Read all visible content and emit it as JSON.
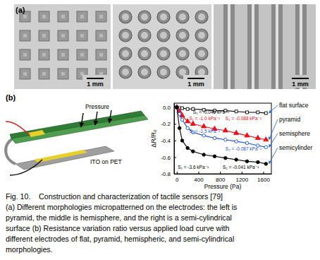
{
  "panel_a": {
    "label": "(a)",
    "scale_bars": [
      "1 mm",
      "1 mm",
      "1 mm"
    ]
  },
  "panel_b": {
    "label": "(b)",
    "device_labels": [
      "Pressure",
      "ITO on PET"
    ]
  },
  "chart_data": {
    "type": "line",
    "x_label": "Pressure (Pa)",
    "y_label": "ΔR/R₀",
    "x": [
      0,
      50,
      100,
      200,
      300,
      500,
      700,
      900,
      1100,
      1300,
      1500,
      1650
    ],
    "series": [
      {
        "name": "flat surface",
        "color": "#000000",
        "marker": "square-open",
        "values": [
          0,
          -0.01,
          -0.01,
          -0.02,
          -0.02,
          -0.03,
          -0.04,
          -0.04,
          -0.05,
          -0.06,
          -0.06,
          -0.07
        ]
      },
      {
        "name": "pyramid",
        "color": "#e8141b",
        "marker": "triangle",
        "values": [
          0,
          -0.05,
          -0.1,
          -0.17,
          -0.2,
          -0.23,
          -0.26,
          -0.28,
          -0.31,
          -0.34,
          -0.37,
          -0.39
        ]
      },
      {
        "name": "semisphere",
        "color": "#1f4fd1",
        "marker": "circle-open",
        "values": [
          0,
          -0.08,
          -0.15,
          -0.25,
          -0.3,
          -0.34,
          -0.37,
          -0.39,
          -0.41,
          -0.43,
          -0.46,
          -0.48
        ]
      },
      {
        "name": "semicylinder",
        "color": "#000000",
        "marker": "circle",
        "values": [
          0,
          -0.25,
          -0.4,
          -0.49,
          -0.53,
          -0.57,
          -0.59,
          -0.61,
          -0.63,
          -0.65,
          -0.66,
          -0.68
        ]
      }
    ],
    "annotations": [
      "S₁ = -0.046 kPa⁻¹",
      "S₁ = -1.0 kPa⁻¹",
      "S₂ = -0.088 kPa⁻¹",
      "S₁ = -1.5 kPa⁻¹",
      "S₂ = -0.087 kPa⁻¹",
      "S₁ = -3.6 kPa⁻¹",
      "S₂ = -0.041 kPa⁻¹"
    ],
    "xlim": [
      -50,
      1750
    ],
    "xticks": [
      0,
      400,
      800,
      1200,
      1600
    ],
    "ylim": [
      -0.8,
      0.05
    ],
    "yticks": [
      -0.8,
      -0.6,
      -0.4,
      -0.2,
      {
        "value": 0,
        "label": "0.0"
      }
    ],
    "legend": "right"
  },
  "caption": {
    "lines": [
      "Fig. 10.    Construction and characterization of tactile sensors [79]",
      "(a) Different morphologies micropatterned on the electrodes: the left is",
      "pyramid, the middle is hemisphere, and the right is a semi-cylindrical",
      "surface (b) Resistance variation ratio versus applied load curve with",
      "different electrodes of flat, pyramid, hemispheric, and semi-cylindrical",
      "morphologies."
    ]
  }
}
